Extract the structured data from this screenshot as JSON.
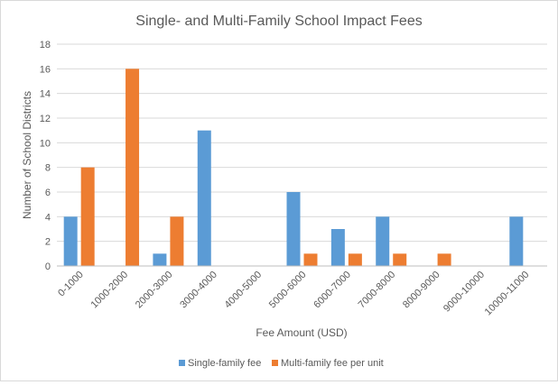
{
  "chart_data": {
    "type": "bar",
    "title": "Single- and Multi-Family School Impact Fees",
    "xlabel": "Fee Amount (USD)",
    "ylabel": "Number of School Districts",
    "ylim": [
      0,
      18
    ],
    "yticks": [
      0,
      2,
      4,
      6,
      8,
      10,
      12,
      14,
      16,
      18
    ],
    "grid": true,
    "legend_position": "bottom",
    "categories": [
      "0-1000",
      "1000-2000",
      "2000-3000",
      "3000-4000",
      "4000-5000",
      "5000-6000",
      "6000-7000",
      "7000-8000",
      "8000-9000",
      "9000-10000",
      "10000-11000"
    ],
    "series": [
      {
        "name": "Single-family fee",
        "color": "#5b9bd5",
        "values": [
          4,
          0,
          1,
          11,
          0,
          6,
          3,
          4,
          0,
          0,
          4
        ]
      },
      {
        "name": "Multi-family fee per unit",
        "color": "#ed7d31",
        "values": [
          8,
          16,
          4,
          0,
          0,
          1,
          1,
          1,
          1,
          0,
          0
        ]
      }
    ]
  }
}
